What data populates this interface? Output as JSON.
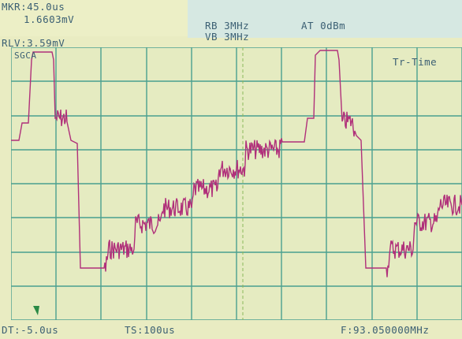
{
  "marker": {
    "mkr": "MKR:45.0us",
    "value": "1.6603mV",
    "rlv": "RLV:3.59mV"
  },
  "params": {
    "rb": "RB 3MHz",
    "at": "AT 0dBm",
    "vb": "VB 3MHz"
  },
  "screen": {
    "corner_label": "SGCA",
    "mode": "Tr-Time"
  },
  "footer": {
    "dt": "DT:-5.0us",
    "ts": "TS:100us",
    "freq": "F:93.050000MHz"
  },
  "colors": {
    "grid": "#4aa090",
    "trace": "#b0307a",
    "text": "#3b5f73",
    "marker_line": "#8cb85a",
    "ref_marker": "#2a8a45"
  }
}
